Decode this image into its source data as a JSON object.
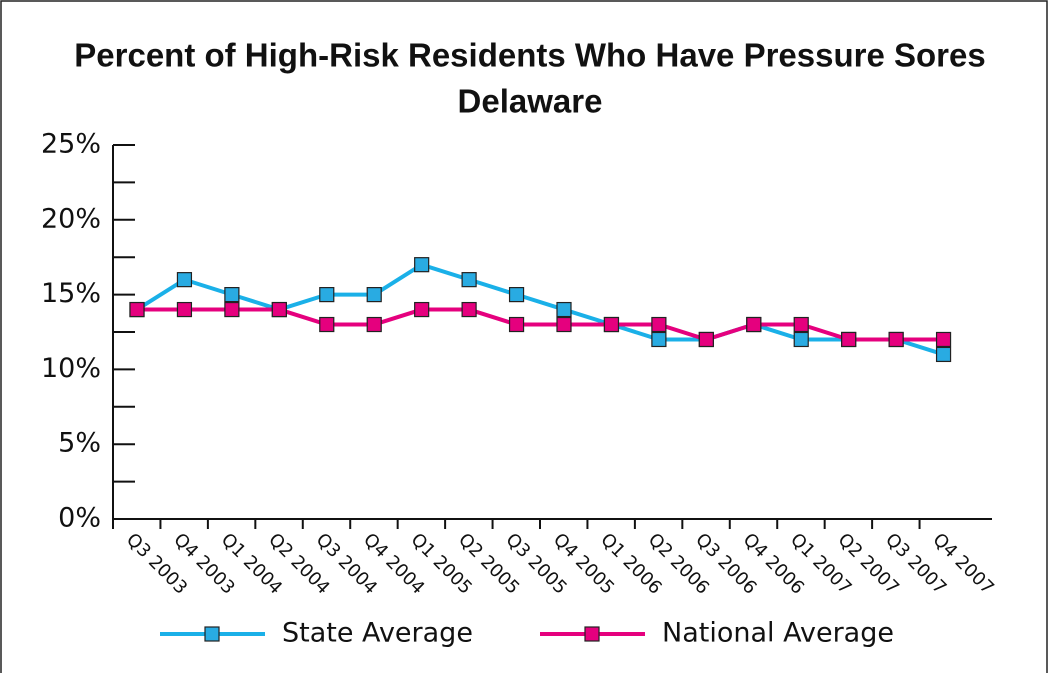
{
  "chart_data": {
    "type": "line",
    "title": "Percent of High-Risk Residents Who Have Pressure Sores",
    "subtitle": "Delaware",
    "categories": [
      "Q3 2003",
      "Q4 2003",
      "Q1 2004",
      "Q2 2004",
      "Q3 2004",
      "Q4 2004",
      "Q1 2005",
      "Q2 2005",
      "Q3 2005",
      "Q4 2005",
      "Q1 2006",
      "Q2 2006",
      "Q3 2006",
      "Q4 2006",
      "Q1 2007",
      "Q2 2007",
      "Q3 2007",
      "Q4 2007"
    ],
    "series": [
      {
        "name": "State Average",
        "color": "#1ab0e8",
        "marker_color": "#29abe2",
        "values": [
          14,
          16,
          15,
          14,
          15,
          15,
          17,
          16,
          15,
          14,
          13,
          12,
          12,
          13,
          12,
          12,
          12,
          11
        ]
      },
      {
        "name": "National Average",
        "color": "#e5007e",
        "marker_color": "#e5007e",
        "values": [
          14,
          14,
          14,
          14,
          13,
          13,
          14,
          14,
          13,
          13,
          13,
          13,
          12,
          13,
          13,
          12,
          12,
          12
        ]
      }
    ],
    "ylim": [
      0,
      25
    ],
    "yticks": [
      {
        "value": 0,
        "label": "0%"
      },
      {
        "value": 5,
        "label": "5%"
      },
      {
        "value": 10,
        "label": "10%"
      },
      {
        "value": 15,
        "label": "15%"
      },
      {
        "value": 20,
        "label": "20%"
      },
      {
        "value": 25,
        "label": "25%"
      }
    ],
    "legend": "bottom"
  }
}
